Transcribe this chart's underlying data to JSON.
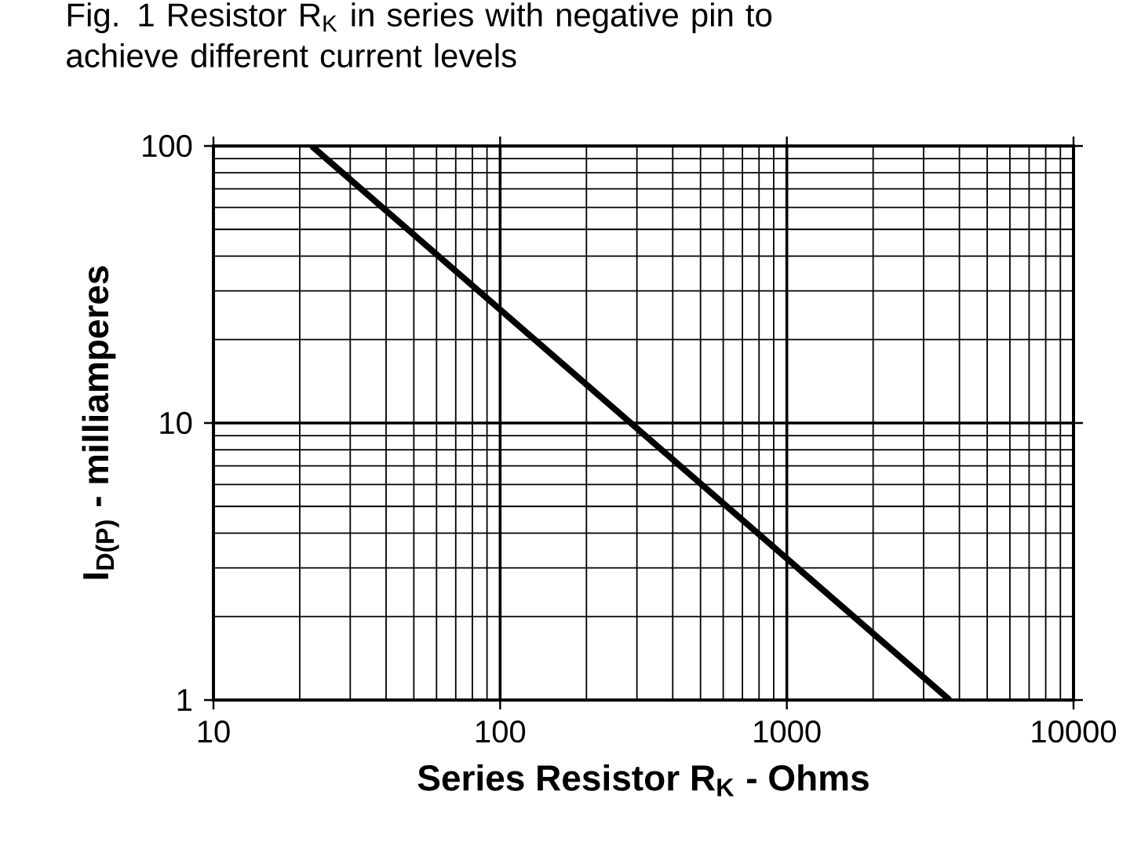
{
  "chart_data": {
    "type": "line",
    "title": "Fig. 1 Resistor R$_{K}$ in series with negative pin to achieve different current levels",
    "xlabel": "Series Resistor R$_{K}$ - Ohms",
    "ylabel": "I$_{D(P)}$ - milliamperes",
    "x": [
      22,
      3700
    ],
    "series": [
      {
        "color": "#000000",
        "values": [
          100,
          1
        ]
      }
    ],
    "xlim": [
      10,
      10000
    ],
    "ylim": [
      1,
      100
    ],
    "xticks": [
      10,
      100,
      1000,
      10000
    ],
    "yticks": [
      1,
      10,
      100
    ],
    "log": "xy",
    "grid": true,
    "line_style": "solid"
  }
}
